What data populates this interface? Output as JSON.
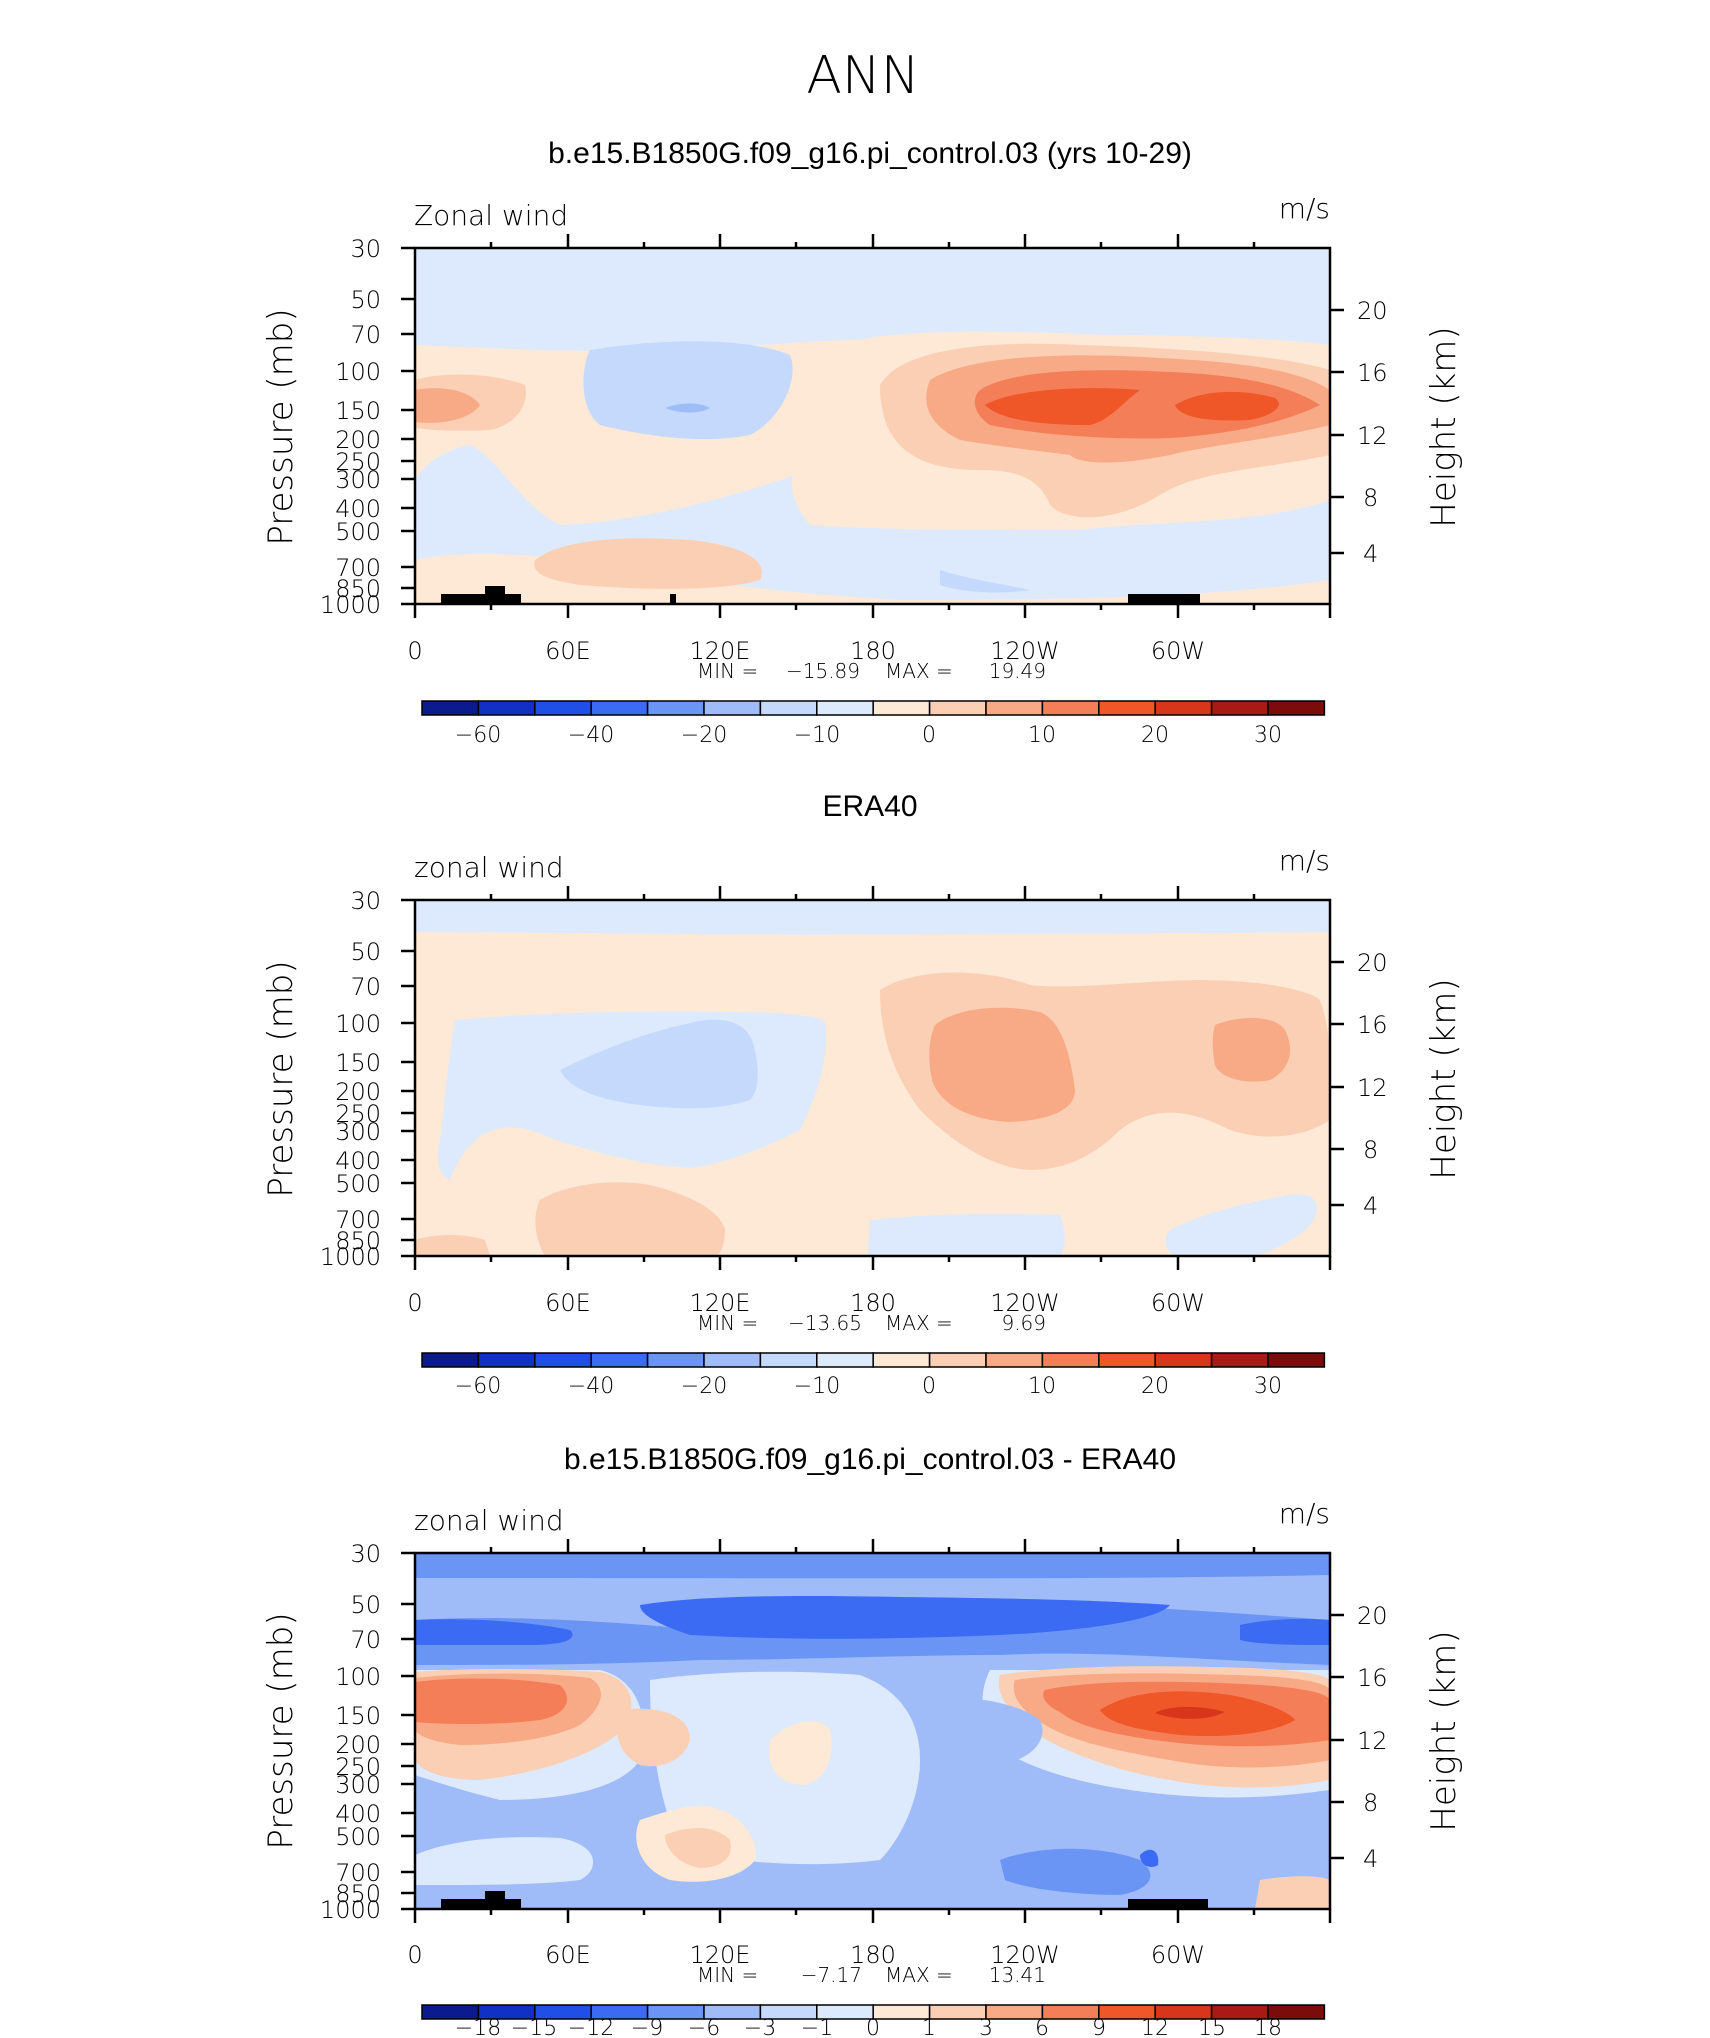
{
  "page_title": "ANN",
  "chart_data": [
    {
      "type": "heatmap",
      "title": "b.e15.B1850G.f09_g16.pi_control.03 (yrs 10-29)",
      "label_left": "Zonal wind",
      "label_right": "m/s",
      "ylabel": "Pressure (mb)",
      "ylabel_right": "Height (km)",
      "x_ticks": [
        "0",
        "60E",
        "120E",
        "180",
        "120W",
        "60W"
      ],
      "y_ticks": [
        "30",
        "50",
        "70",
        "100",
        "150",
        "200",
        "250",
        "300",
        "400",
        "500",
        "700",
        "850",
        "1000"
      ],
      "y_ticks_right": [
        "20",
        "16",
        "12",
        "8",
        "4"
      ],
      "min_label": "MIN =",
      "min": "−15.89",
      "max_label": "MAX =",
      "max": "19.49",
      "colorbar_ticks": [
        "−60",
        "−40",
        "−20",
        "−10",
        "0",
        "10",
        "20",
        "30"
      ]
    },
    {
      "type": "heatmap",
      "title": "ERA40",
      "label_left": "zonal wind",
      "label_right": "m/s",
      "ylabel": "Pressure (mb)",
      "ylabel_right": "Height (km)",
      "x_ticks": [
        "0",
        "60E",
        "120E",
        "180",
        "120W",
        "60W"
      ],
      "y_ticks": [
        "30",
        "50",
        "70",
        "100",
        "150",
        "200",
        "250",
        "300",
        "400",
        "500",
        "700",
        "850",
        "1000"
      ],
      "y_ticks_right": [
        "20",
        "16",
        "12",
        "8",
        "4"
      ],
      "min_label": "MIN =",
      "min": "−13.65",
      "max_label": "MAX =",
      "max": "9.69",
      "colorbar_ticks": [
        "−60",
        "−40",
        "−20",
        "−10",
        "0",
        "10",
        "20",
        "30"
      ]
    },
    {
      "type": "heatmap",
      "title": "b.e15.B1850G.f09_g16.pi_control.03 - ERA40",
      "label_left": "zonal wind",
      "label_right": "m/s",
      "ylabel": "Pressure (mb)",
      "ylabel_right": "Height (km)",
      "x_ticks": [
        "0",
        "60E",
        "120E",
        "180",
        "120W",
        "60W"
      ],
      "y_ticks": [
        "30",
        "50",
        "70",
        "100",
        "150",
        "200",
        "250",
        "300",
        "400",
        "500",
        "700",
        "850",
        "1000"
      ],
      "y_ticks_right": [
        "20",
        "16",
        "12",
        "8",
        "4"
      ],
      "min_label": "MIN =",
      "min": "−7.17",
      "max_label": "MAX =",
      "max": "13.41",
      "colorbar_ticks": [
        "−18",
        "−15",
        "−12",
        "−9",
        "−6",
        "−3",
        "−1",
        "0",
        "1",
        "3",
        "6",
        "9",
        "12",
        "15",
        "18"
      ]
    }
  ],
  "colors": {
    "bluedark": "#0b1a8c",
    "blue1": "#1130c4",
    "blue2": "#1f4fe6",
    "blue3": "#3b6bf2",
    "blue4": "#6b95f5",
    "blue5": "#9fbcf9",
    "blue6": "#c5d9fc",
    "blue7": "#ddeafd",
    "neutral": "#fde9d6",
    "red1": "#fbcfb4",
    "red2": "#f8a985",
    "red3": "#f47e57",
    "red4": "#ef5628",
    "red5": "#d8361a",
    "red6": "#a91a14",
    "reddark": "#7c0c0c",
    "land": "#000000"
  }
}
